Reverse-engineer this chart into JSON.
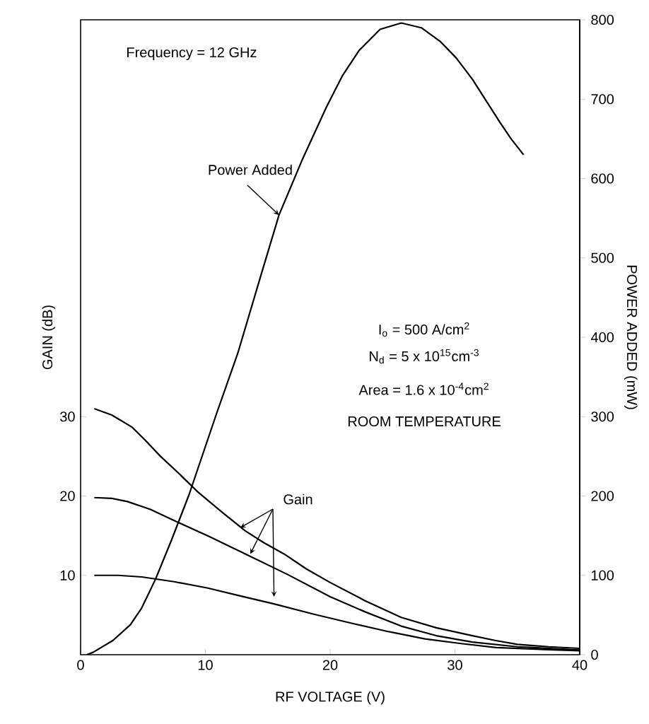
{
  "chart_data": {
    "type": "line",
    "xlabel": "RF VOLTAGE (V)",
    "ylabel": "GAIN (dB)",
    "y2label": "POWER ADDED (mW)",
    "xlim": [
      0,
      40
    ],
    "xticks": [
      0,
      10,
      20,
      30,
      40
    ],
    "ylim": [
      0,
      80
    ],
    "yticks": [
      10,
      20,
      30
    ],
    "y2lim": [
      0,
      800
    ],
    "y2ticks": [
      0,
      100,
      200,
      300,
      400,
      500,
      600,
      700,
      800
    ],
    "series": [
      {
        "color": "#000000",
        "axis": "y2",
        "x": [
          0.5,
          1,
          2.6,
          4,
          4.9,
          6,
          7.3,
          8.7,
          10.9,
          12.6,
          14.3,
          15.9,
          17.8,
          19.7,
          21,
          22.3,
          24,
          25.7,
          27.3,
          28.8,
          30.1,
          31.4,
          32.5,
          33.6,
          34.5,
          35.5
        ],
        "values": [
          0,
          3,
          18,
          38,
          59,
          95,
          145,
          202,
          304,
          380,
          470,
          554,
          625,
          690,
          730,
          761,
          788,
          796,
          790,
          773,
          752,
          725,
          698,
          671,
          650,
          630
        ]
      },
      {
        "color": "#000000",
        "x": [
          1.1,
          2.5,
          4.1,
          5.2,
          6.4,
          7.9,
          9.4,
          11.3,
          13.2,
          14.7,
          16.3,
          18.1,
          20,
          22.8,
          25.7,
          28.5,
          31.4,
          33.2,
          35,
          37.5,
          40
        ],
        "values": [
          31,
          30.2,
          28.7,
          27,
          25,
          22.8,
          20.5,
          18,
          15.6,
          14.1,
          12.7,
          10.8,
          9.1,
          6.8,
          4.7,
          3.4,
          2.4,
          1.8,
          1.3,
          1,
          0.8
        ]
      },
      {
        "color": "#000000",
        "x": [
          1.1,
          2.5,
          3.75,
          5.6,
          7.5,
          10.3,
          13.2,
          16.6,
          20,
          22.8,
          25.7,
          28.5,
          31.4,
          35,
          40
        ],
        "values": [
          19.8,
          19.7,
          19.3,
          18.3,
          16.9,
          14.9,
          12.7,
          10.1,
          7.3,
          5.4,
          3.6,
          2.4,
          1.6,
          1,
          0.6
        ]
      },
      {
        "color": "#000000",
        "x": [
          1.1,
          3,
          4.9,
          7.5,
          10.2,
          12.8,
          15.5,
          18.7,
          21.9,
          24.7,
          27.6,
          30.5,
          33.3,
          36.5,
          40
        ],
        "values": [
          10,
          10,
          9.8,
          9.2,
          8.4,
          7.4,
          6.4,
          5.1,
          3.9,
          2.9,
          2,
          1.4,
          0.9,
          0.7,
          0.5
        ]
      }
    ],
    "annotations": [
      "Frequency = 12 GHz",
      "Power Added",
      "Gain",
      "I$_{o}$ = 500 A/cm$^{2}$",
      "N$_{d}$ = 5 x 10$^{15}$cm$^{-3}$",
      "Area = 1.6 x 10$^{-4}$cm$^{2}$",
      "ROOM TEMPERATURE"
    ]
  }
}
